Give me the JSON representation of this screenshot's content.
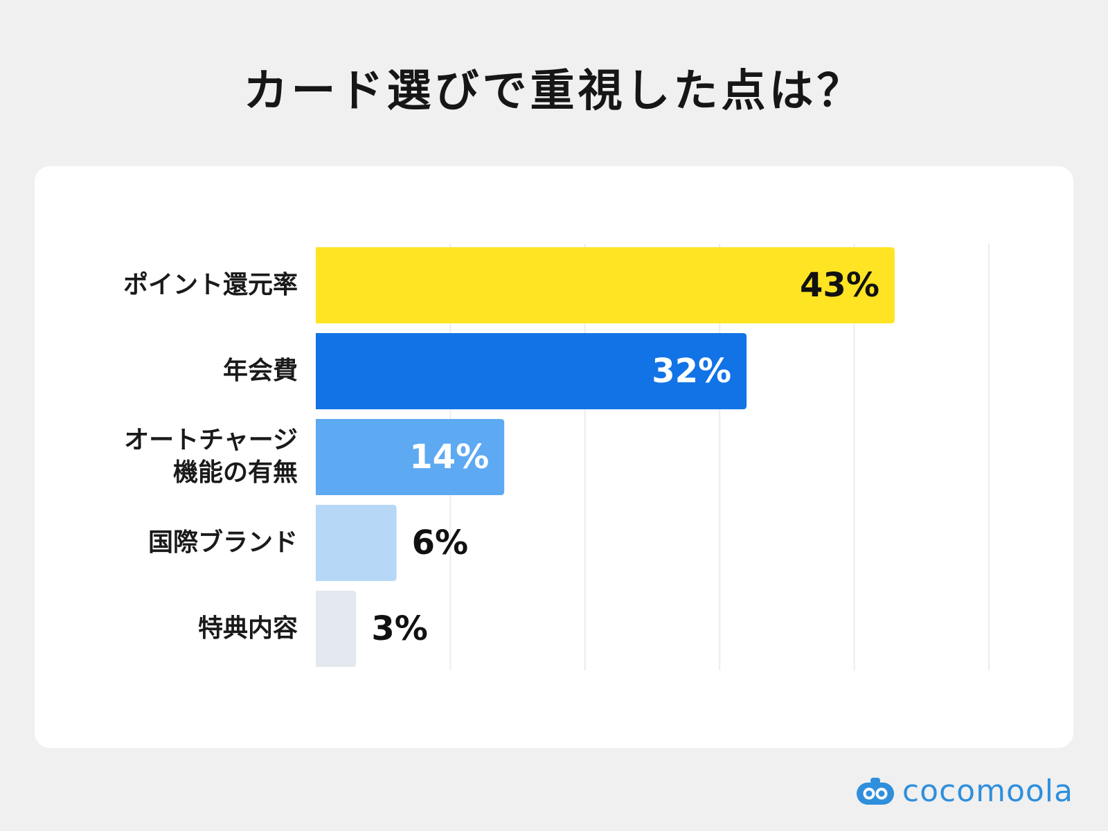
{
  "title": "カード選びで重視した点は？",
  "brand": {
    "name": "cocomoola",
    "icon": "robot-face-icon",
    "color": "#2f8fdc"
  },
  "chart_data": {
    "type": "bar",
    "orientation": "horizontal",
    "title": "カード選びで重視した点は？",
    "categories": [
      [
        "ポイント還元率"
      ],
      [
        "年会費"
      ],
      [
        "オートチャージ",
        "機能の有無"
      ],
      [
        "国際ブランド"
      ],
      [
        "特典内容"
      ]
    ],
    "values": [
      43,
      32,
      14,
      6,
      3
    ],
    "value_labels": [
      "43%",
      "32%",
      "14%",
      "6%",
      "3%"
    ],
    "colors": [
      "#ffe423",
      "#1273e6",
      "#5da9f2",
      "#b7d7f7",
      "#e3e8ef"
    ],
    "label_colors": [
      "#111111",
      "#ffffff",
      "#ffffff",
      "#111111",
      "#111111"
    ],
    "label_inside": [
      true,
      true,
      true,
      false,
      false
    ],
    "xlim": [
      0,
      50
    ],
    "grid": true,
    "legend": "none"
  }
}
